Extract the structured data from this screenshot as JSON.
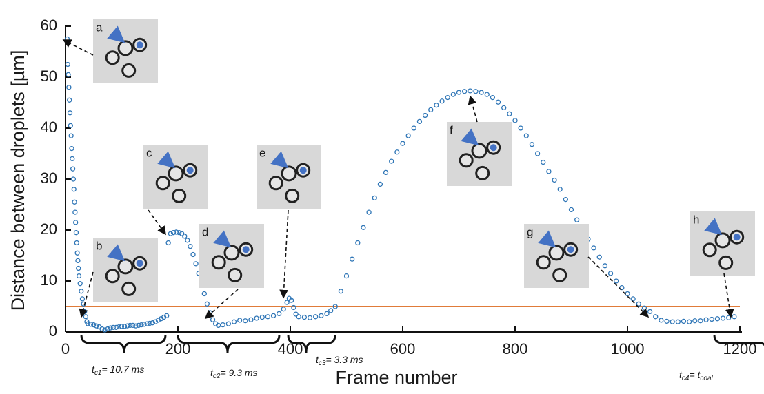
{
  "chart_data": {
    "type": "scatter",
    "x_label": "Frame number",
    "y_label": "Distance between droplets [µm]",
    "xlim": [
      0,
      1200
    ],
    "ylim": [
      0,
      60
    ],
    "xticks": [
      0,
      200,
      400,
      600,
      800,
      1000,
      1200
    ],
    "yticks": [
      0,
      10,
      20,
      30,
      40,
      50,
      60
    ],
    "color": "#2e75b6",
    "threshold": 5,
    "threshold_color": "#e07b39",
    "insets": [
      "a",
      "b",
      "c",
      "d",
      "e",
      "f",
      "g",
      "h"
    ],
    "annotations": [
      [
        {
          "text": "t"
        },
        {
          "sub": "c1"
        },
        {
          "text": "= 10.7 ms"
        }
      ],
      [
        {
          "text": "t"
        },
        {
          "sub": "c2"
        },
        {
          "text": "= 9.3 ms"
        }
      ],
      [
        {
          "text": "t"
        },
        {
          "sub": "c3"
        },
        {
          "text": "= 3.3 ms"
        }
      ],
      [
        {
          "text": "t"
        },
        {
          "sub": "c4"
        },
        {
          "text": "= t"
        },
        {
          "sub": "coal"
        }
      ]
    ],
    "x": [
      3,
      4,
      5,
      6,
      7,
      8,
      9,
      10,
      11,
      12,
      13,
      14,
      15,
      16,
      17,
      18,
      19,
      20,
      21,
      22,
      23,
      24,
      26,
      28,
      30,
      32,
      34,
      36,
      38,
      40,
      45,
      50,
      55,
      60,
      65,
      70,
      75,
      80,
      85,
      90,
      95,
      100,
      105,
      110,
      115,
      120,
      125,
      130,
      135,
      140,
      145,
      150,
      155,
      160,
      165,
      170,
      175,
      180,
      183,
      187,
      192,
      197,
      202,
      207,
      212,
      217,
      222,
      227,
      232,
      237,
      242,
      247,
      252,
      257,
      262,
      267,
      272,
      280,
      290,
      300,
      310,
      320,
      330,
      340,
      350,
      360,
      370,
      380,
      388,
      394,
      398,
      402,
      406,
      410,
      415,
      425,
      435,
      445,
      455,
      465,
      472,
      480,
      490,
      500,
      510,
      520,
      530,
      540,
      550,
      560,
      570,
      580,
      590,
      600,
      610,
      620,
      630,
      640,
      650,
      660,
      670,
      680,
      690,
      700,
      710,
      720,
      730,
      740,
      750,
      760,
      770,
      780,
      790,
      800,
      810,
      820,
      830,
      840,
      850,
      860,
      870,
      880,
      890,
      900,
      910,
      920,
      930,
      940,
      950,
      960,
      970,
      980,
      990,
      1000,
      1010,
      1020,
      1030,
      1040,
      1050,
      1060,
      1070,
      1080,
      1090,
      1100,
      1110,
      1120,
      1130,
      1140,
      1150,
      1160,
      1170,
      1180,
      1190
    ],
    "values": [
      57.5,
      52.5,
      50.5,
      48,
      45.5,
      43,
      40.5,
      38.5,
      36,
      34,
      32,
      30,
      28,
      25.5,
      23.5,
      21.5,
      19.5,
      17.5,
      15.5,
      14,
      12.5,
      11,
      9.5,
      8,
      6.5,
      5.5,
      4,
      3,
      2,
      1.6,
      1.5,
      1.4,
      1.2,
      1.0,
      0.6,
      0.4,
      0.6,
      0.8,
      0.9,
      0.9,
      1.0,
      1.1,
      1.1,
      1.2,
      1.3,
      1.3,
      1.2,
      1.3,
      1.4,
      1.5,
      1.6,
      1.7,
      1.8,
      2.0,
      2.3,
      2.6,
      2.9,
      3.2,
      17.5,
      19.3,
      19.5,
      19.6,
      19.5,
      19.3,
      18.8,
      18,
      16.8,
      15.2,
      13.4,
      11.5,
      9.5,
      7.5,
      5.5,
      3.8,
      2.4,
      1.6,
      1.3,
      1.4,
      1.6,
      2.0,
      2.3,
      2.2,
      2.4,
      2.7,
      2.9,
      3.0,
      3.2,
      3.6,
      4.5,
      5.8,
      6.6,
      6.2,
      4.8,
      3.5,
      3.0,
      2.9,
      2.8,
      3.0,
      3.2,
      3.6,
      4.2,
      5.0,
      8,
      11,
      14.3,
      17.5,
      20.5,
      23.5,
      26.3,
      29,
      31.3,
      33.5,
      35.3,
      37,
      38.5,
      40,
      41.3,
      42.5,
      43.6,
      44.5,
      45.3,
      46,
      46.6,
      47,
      47.2,
      47.3,
      47.2,
      47,
      46.6,
      46,
      45.1,
      44,
      42.8,
      41.5,
      40,
      38.5,
      36.8,
      35,
      33.3,
      31.5,
      29.8,
      28,
      26,
      24,
      22,
      20,
      18.2,
      16.5,
      14.7,
      13,
      11.5,
      10,
      8.7,
      7.5,
      6.5,
      5.5,
      4.7,
      4,
      3,
      2.3,
      2.1,
      2.0,
      2.0,
      2.1,
      2.0,
      2.2,
      2.2,
      2.4,
      2.5,
      2.6,
      2.7,
      2.8,
      3.0
    ]
  }
}
